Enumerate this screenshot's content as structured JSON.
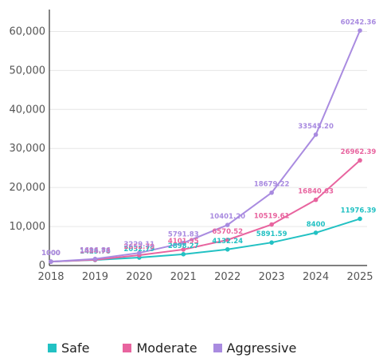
{
  "chart_data": {
    "type": "line",
    "title": "",
    "xlabel": "",
    "ylabel": "",
    "x": [
      "2018",
      "2019",
      "2020",
      "2021",
      "2022",
      "2023",
      "2024",
      "2025"
    ],
    "ylim": [
      0,
      65000
    ],
    "y_ticks": [
      0,
      10000,
      20000,
      30000,
      40000,
      50000,
      60000
    ],
    "y_tick_labels": [
      "0",
      "10,000",
      "20,000",
      "30,000",
      "40,000",
      "50,000",
      "60,000"
    ],
    "grid": "horizontal",
    "legend_position": "bottom",
    "series": [
      {
        "name": "Safe",
        "color": "#22c1c3",
        "values": [
          1000,
          1425.76,
          2032.79,
          2898.27,
          4132.24,
          5891.59,
          8400,
          11976.39
        ],
        "labels": [
          "1000",
          "1425.76",
          "2032.79",
          "2898.27",
          "4132.24",
          "5891.59",
          "8400",
          "11976.39"
        ]
      },
      {
        "name": "Moderate",
        "color": "#e8649f",
        "values": [
          1000,
          1484.73,
          2652.79,
          4101.95,
          6570.52,
          10519.61,
          16840.63,
          26962.39
        ],
        "labels": [
          "1000",
          "1484.73",
          "2652.79",
          "4101.95",
          "6570.52",
          "10519.61",
          "16840.63",
          "26962.39"
        ]
      },
      {
        "name": "Aggressive",
        "color": "#a98be0",
        "values": [
          1000,
          1696.86,
          3229.11,
          5791.83,
          10401.2,
          18679.22,
          33545.2,
          60242.36
        ],
        "labels": [
          "1000",
          "1696.86",
          "3229.11",
          "5791.83",
          "10401.20",
          "18679.22",
          "33545.20",
          "60242.36"
        ]
      }
    ]
  }
}
